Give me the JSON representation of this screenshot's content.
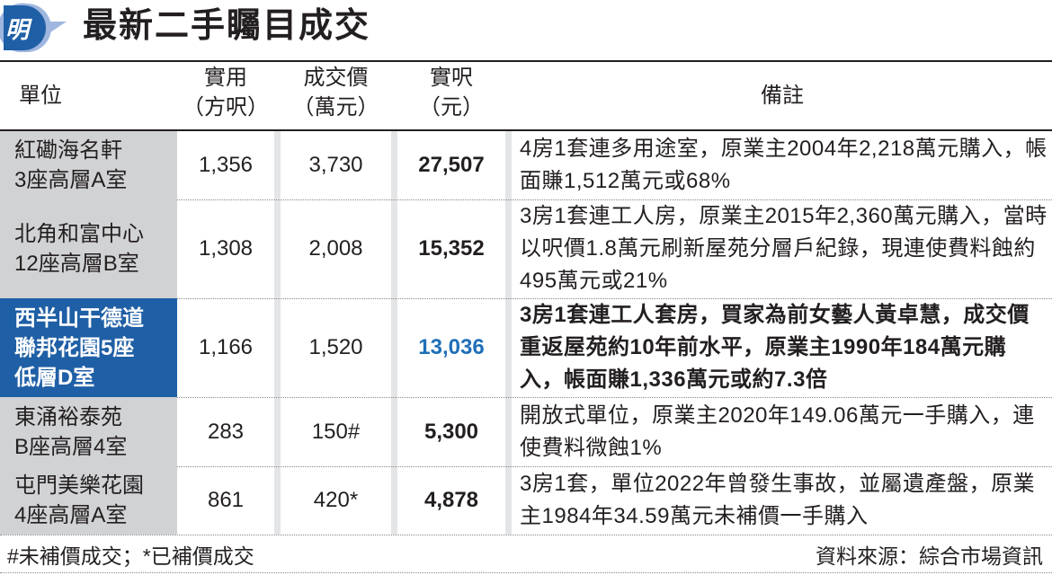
{
  "header": {
    "logo_text": "明",
    "title": "最新二手矚目成交"
  },
  "columns": [
    {
      "line1": "單位",
      "line2": ""
    },
    {
      "line1": "實用",
      "line2": "（方呎）"
    },
    {
      "line1": "成交價",
      "line2": "（萬元）"
    },
    {
      "line1": "實呎",
      "line2": "（元）"
    },
    {
      "line1": "備註",
      "line2": ""
    }
  ],
  "rows": [
    {
      "unit1": "紅磡海名軒",
      "unit2": "3座高層A室",
      "unit3": "",
      "area": "1,356",
      "price": "3,730",
      "psf": "27,507",
      "remark": "4房1套連多用途室，原業主2004年2,218萬元購入，帳面賺1,512萬元或68%",
      "highlight": false
    },
    {
      "unit1": "北角和富中心",
      "unit2": "12座高層B室",
      "unit3": "",
      "area": "1,308",
      "price": "2,008",
      "psf": "15,352",
      "remark": "3房1套連工人房，原業主2015年2,360萬元購入，當時以呎價1.8萬元刷新屋苑分層戶紀錄，現連使費料蝕約495萬元或21%",
      "highlight": false
    },
    {
      "unit1": "西半山干德道",
      "unit2": "聯邦花園5座",
      "unit3": "低層D室",
      "area": "1,166",
      "price": "1,520",
      "psf": "13,036",
      "remark": "3房1套連工人套房，買家為前女藝人黃卓慧，成交價重返屋苑約10年前水平，原業主1990年184萬元購入，帳面賺1,336萬元或約7.3倍",
      "highlight": true
    },
    {
      "unit1": "東涌裕泰苑",
      "unit2": "B座高層4室",
      "unit3": "",
      "area": "283",
      "price": "150#",
      "psf": "5,300",
      "remark": "開放式單位，原業主2020年149.06萬元一手購入，連使費料微蝕1%",
      "highlight": false
    },
    {
      "unit1": "屯門美樂花園",
      "unit2": "4座高層A室",
      "unit3": "",
      "area": "861",
      "price": "420*",
      "psf": "4,878",
      "remark": "3房1套，單位2022年曾發生事故，並屬遺產盤，原業主1984年34.59萬元未補價一手購入",
      "highlight": false
    }
  ],
  "footer": {
    "note": "#未補價成交；*已補價成交",
    "source": "資料來源：綜合市場資訊"
  },
  "colors": {
    "highlight_bg": "#1f5fa6",
    "highlight_text": "#1f6fb8",
    "unit_bg": "#d1d2d4"
  }
}
